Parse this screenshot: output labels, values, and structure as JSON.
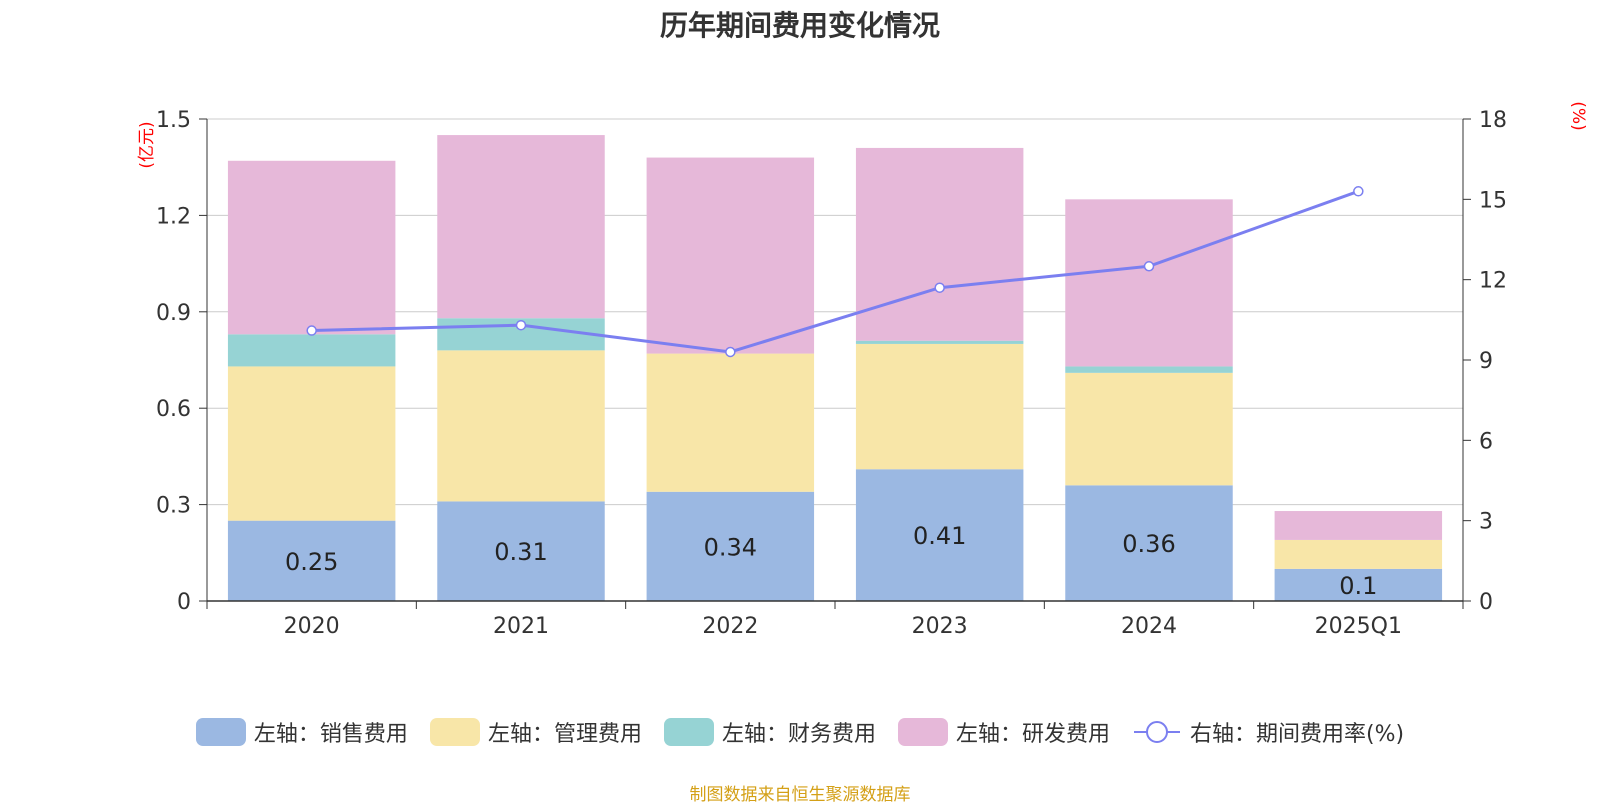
{
  "chart_data": {
    "type": "bar",
    "stacked": true,
    "title": "历年期间费用变化情况",
    "categories": [
      "2020",
      "2021",
      "2022",
      "2023",
      "2024",
      "2025Q1"
    ],
    "left_axis": {
      "unit_label": "(亿元)",
      "ylim": [
        0,
        1.5
      ],
      "ticks": [
        "0",
        "0.3",
        "0.6",
        "0.9",
        "1.2",
        "1.5"
      ],
      "color": "#ff0000"
    },
    "right_axis": {
      "unit_label": "(%)",
      "ylim": [
        0,
        18
      ],
      "ticks": [
        "0",
        "3",
        "6",
        "9",
        "12",
        "15",
        "18"
      ],
      "color": "#ff0000"
    },
    "series": [
      {
        "name": "左轴：销售费用",
        "axis": "left",
        "type": "bar",
        "color": "#9bb8e2",
        "values": [
          0.25,
          0.31,
          0.34,
          0.41,
          0.36,
          0.1
        ],
        "labels": [
          "0.25",
          "0.31",
          "0.34",
          "0.41",
          "0.36",
          "0.1"
        ]
      },
      {
        "name": "左轴：管理费用",
        "axis": "left",
        "type": "bar",
        "color": "#f8e6a8",
        "values": [
          0.48,
          0.47,
          0.43,
          0.39,
          0.35,
          0.09
        ]
      },
      {
        "name": "左轴：财务费用",
        "axis": "left",
        "type": "bar",
        "color": "#96d3d4",
        "values": [
          0.1,
          0.1,
          0.0,
          0.01,
          0.02,
          0.0
        ]
      },
      {
        "name": "左轴：研发费用",
        "axis": "left",
        "type": "bar",
        "color": "#e6b8d9",
        "values": [
          0.54,
          0.57,
          0.61,
          0.6,
          0.52,
          0.09
        ]
      },
      {
        "name": "右轴：期间费用率(%)",
        "axis": "right",
        "type": "line",
        "color": "#7b7ff0",
        "values": [
          10.1,
          10.3,
          9.3,
          11.7,
          12.5,
          15.3
        ]
      }
    ],
    "grid": true,
    "legend_position": "bottom"
  },
  "source_note": "制图数据来自恒生聚源数据库"
}
